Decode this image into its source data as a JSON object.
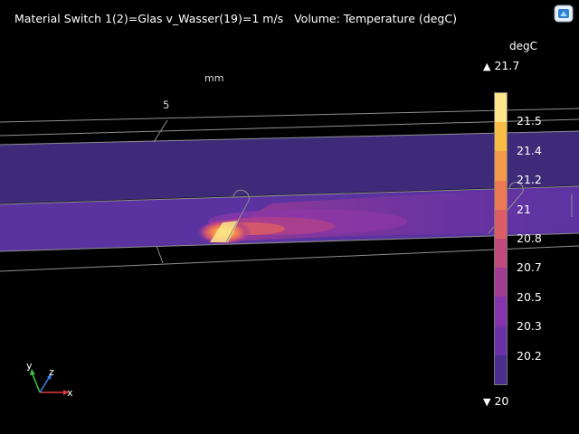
{
  "plot": {
    "title": "Material Switch 1(2)=Glas v_Wasser(19)=1 m/s   Volume: Temperature (degC)",
    "axis_unit": "mm",
    "axis_tick": "5"
  },
  "colorbar": {
    "unit": "degC",
    "max_label": "21.7",
    "min_label": "20",
    "max_value": 21.7,
    "min_value": 20,
    "labels": [
      "21.5",
      "21.4",
      "21.2",
      "21",
      "20.8",
      "20.7",
      "20.5",
      "20.3",
      "20.2"
    ],
    "colors": [
      "#fce58a",
      "#f9bc45",
      "#f59a4c",
      "#ee7a55",
      "#dc5d66",
      "#c04a7b",
      "#a23b93",
      "#8634ae",
      "#6a31a8",
      "#4a2e8e"
    ]
  },
  "triad": {
    "x": "x",
    "y": "y",
    "z": "z"
  },
  "logo": {
    "icon": "app-logo-icon"
  }
}
